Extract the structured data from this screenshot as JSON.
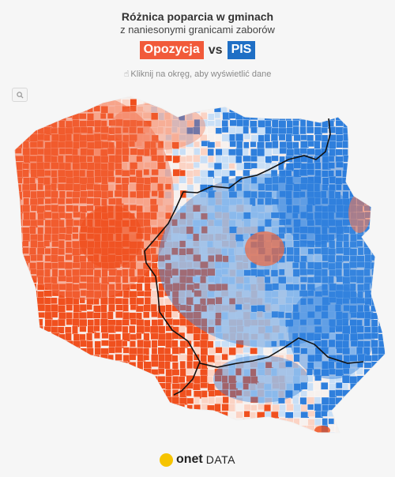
{
  "header": {
    "title": "Różnica poparcia w gminach",
    "subtitle": "z naniesonymi granicami zaborów",
    "hint": "Kliknij na okręg, aby wyświetlić dane",
    "hint_icon": "pointer-hand-icon"
  },
  "legend": {
    "left_label": "Opozycja",
    "vs_label": "vs",
    "right_label": "PIS",
    "left_color": "#f15a3a",
    "right_color": "#1f6fc5"
  },
  "map": {
    "type": "choropleth",
    "region": "Poland",
    "unit": "gminy",
    "overlay": "partition borders (zabory)",
    "colors": {
      "opposition_strong": "#f0501e",
      "opposition_light": "#fbd3c4",
      "neutral": "#f7f1ee",
      "pis_light": "#c9dff6",
      "pis_strong": "#2f7fdc"
    },
    "zoom_icon": "zoom-icon"
  },
  "footer": {
    "brand": "onet",
    "brand_suffix": "DATA",
    "logo_color": "#f6c400"
  }
}
